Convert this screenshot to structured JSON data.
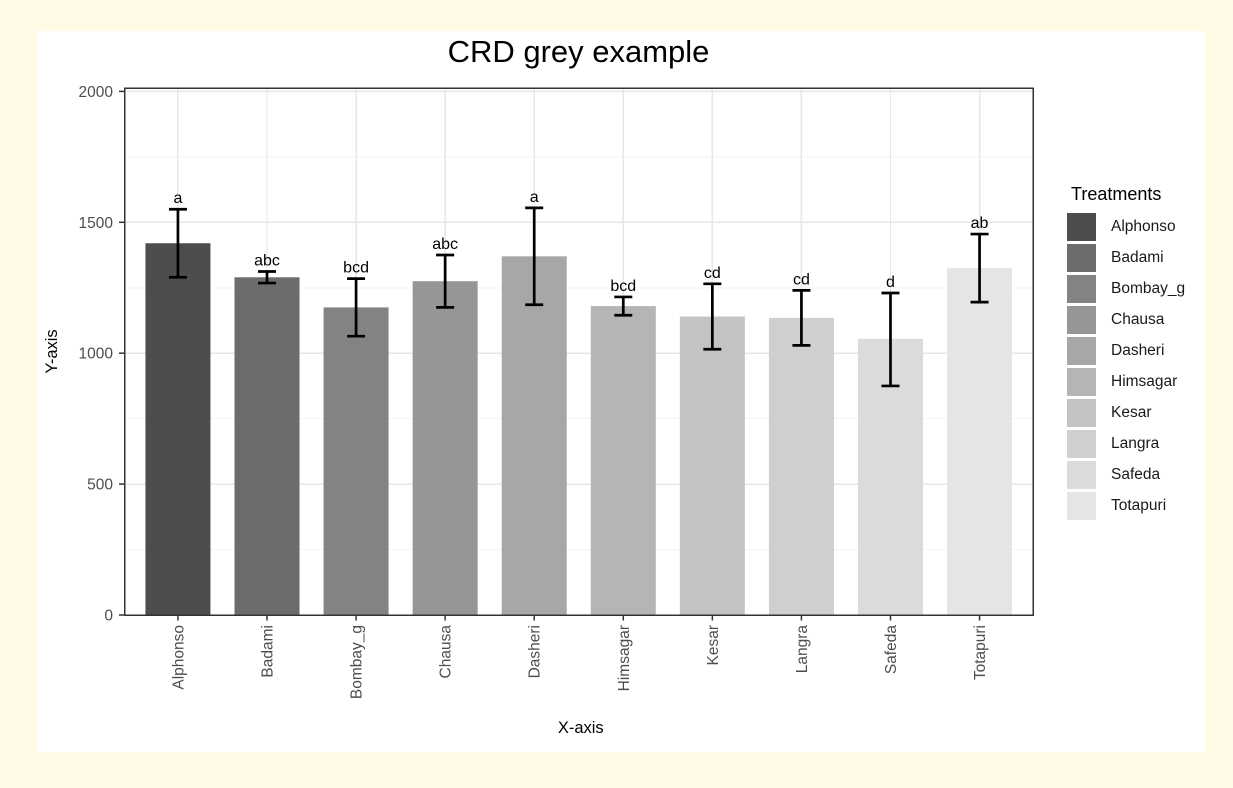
{
  "page": {
    "background_color": "#FFFBE6",
    "card_color": "#FFFFFF"
  },
  "chart_data": {
    "type": "bar",
    "title": "CRD grey example",
    "xlabel": "X-axis",
    "ylabel": "Y-axis",
    "legend_title": "Treatments",
    "legend_position": "right",
    "grid": true,
    "ylim": [
      0,
      2000
    ],
    "yticks": [
      0,
      500,
      1000,
      1500,
      2000
    ],
    "yticks_minor": [
      250,
      750,
      1250,
      1750
    ],
    "categories": [
      "Alphonso",
      "Badami",
      "Bombay_g",
      "Chausa",
      "Dasheri",
      "Himsagar",
      "Kesar",
      "Langra",
      "Safeda",
      "Totapuri"
    ],
    "values": [
      1420,
      1290,
      1175,
      1275,
      1370,
      1180,
      1140,
      1135,
      1055,
      1325
    ],
    "error_low": [
      1290,
      1268,
      1065,
      1175,
      1185,
      1145,
      1015,
      1030,
      875,
      1195
    ],
    "error_high": [
      1550,
      1312,
      1285,
      1375,
      1555,
      1215,
      1265,
      1240,
      1230,
      1455
    ],
    "sig_letters": [
      "a",
      "abc",
      "bcd",
      "abc",
      "a",
      "bcd",
      "cd",
      "cd",
      "d",
      "ab"
    ],
    "bar_colors": [
      "#4D4D4D",
      "#6C6C6C",
      "#838383",
      "#969696",
      "#A7A7A7",
      "#B5B5B5",
      "#C3C3C3",
      "#CFCFCF",
      "#DBDBDB",
      "#E5E5E5"
    ],
    "colors": {
      "errorbar": "#000000",
      "panel_border": "#333333",
      "grid_major": "#E7E7E7",
      "grid_minor": "#F3F3F3",
      "tick_label": "#4D4D4D",
      "axis_title": "#000000",
      "sig_letter": "#000000",
      "tick_mark": "#333333"
    }
  }
}
